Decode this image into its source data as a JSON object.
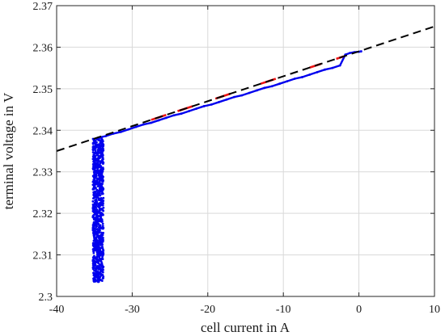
{
  "chart_data": {
    "type": "scatter",
    "title": "",
    "xlabel": "cell current in A",
    "ylabel": "terminal voltage in V",
    "xlim": [
      -40,
      10
    ],
    "ylim": [
      2.3,
      2.37
    ],
    "xticks": [
      -40,
      -30,
      -20,
      -10,
      0,
      10
    ],
    "yticks": [
      2.3,
      2.31,
      2.32,
      2.33,
      2.34,
      2.35,
      2.36,
      2.37
    ],
    "xtick_labels": [
      "-40",
      "-30",
      "-20",
      "-10",
      "0",
      "10"
    ],
    "ytick_labels": [
      "2.3",
      "2.31",
      "2.32",
      "2.33",
      "2.34",
      "2.35",
      "2.36",
      "2.37"
    ],
    "grid": true,
    "legend": "none",
    "colors": {
      "measurement": "#0000ee",
      "highlight": "#ee1111",
      "fit": "#000000"
    },
    "series": [
      {
        "kind": "vertical-cluster",
        "color": "measurement",
        "x_center": -34.5,
        "x_spread": 0.7,
        "y_range": [
          2.3035,
          2.338
        ]
      },
      {
        "kind": "line-points",
        "color": "measurement",
        "x": [
          -34.5,
          -33.5,
          -32.5,
          -31.5,
          -30.5,
          -29.5,
          -28.5,
          -27.5,
          -26.5,
          -25.5,
          -24.5,
          -23.5,
          -22.5,
          -21.5,
          -20.5,
          -19.5,
          -18.5,
          -17.5,
          -16.5,
          -15.5,
          -14.5,
          -13.5,
          -12.5,
          -11.5,
          -10.5,
          -9.5,
          -8.5,
          -7.5,
          -6.5,
          -5.5,
          -4.5,
          -3.5,
          -2.5,
          -1.8,
          -1.2,
          -0.6,
          0,
          0.3
        ],
        "y": [
          2.3382,
          2.3386,
          2.3392,
          2.3396,
          2.3402,
          2.3408,
          2.3414,
          2.3418,
          2.3424,
          2.343,
          2.3436,
          2.344,
          2.3446,
          2.3452,
          2.3458,
          2.3462,
          2.3468,
          2.3474,
          2.348,
          2.3484,
          2.349,
          2.3496,
          2.3502,
          2.3506,
          2.3512,
          2.3518,
          2.3524,
          2.3528,
          2.3534,
          2.354,
          2.3546,
          2.355,
          2.3556,
          2.3582,
          2.3586,
          2.3588,
          2.3589,
          2.359
        ]
      },
      {
        "kind": "segments",
        "color": "highlight",
        "segments": [
          [
            -27.5,
            -25.5
          ],
          [
            -24,
            -22
          ],
          [
            -19,
            -17
          ],
          [
            -13,
            -11
          ],
          [
            -6.5,
            -5
          ],
          [
            -3,
            -2
          ]
        ]
      },
      {
        "kind": "dashed-fit",
        "color": "fit",
        "x": [
          -40,
          10
        ],
        "y": [
          2.335,
          2.365
        ]
      }
    ]
  }
}
